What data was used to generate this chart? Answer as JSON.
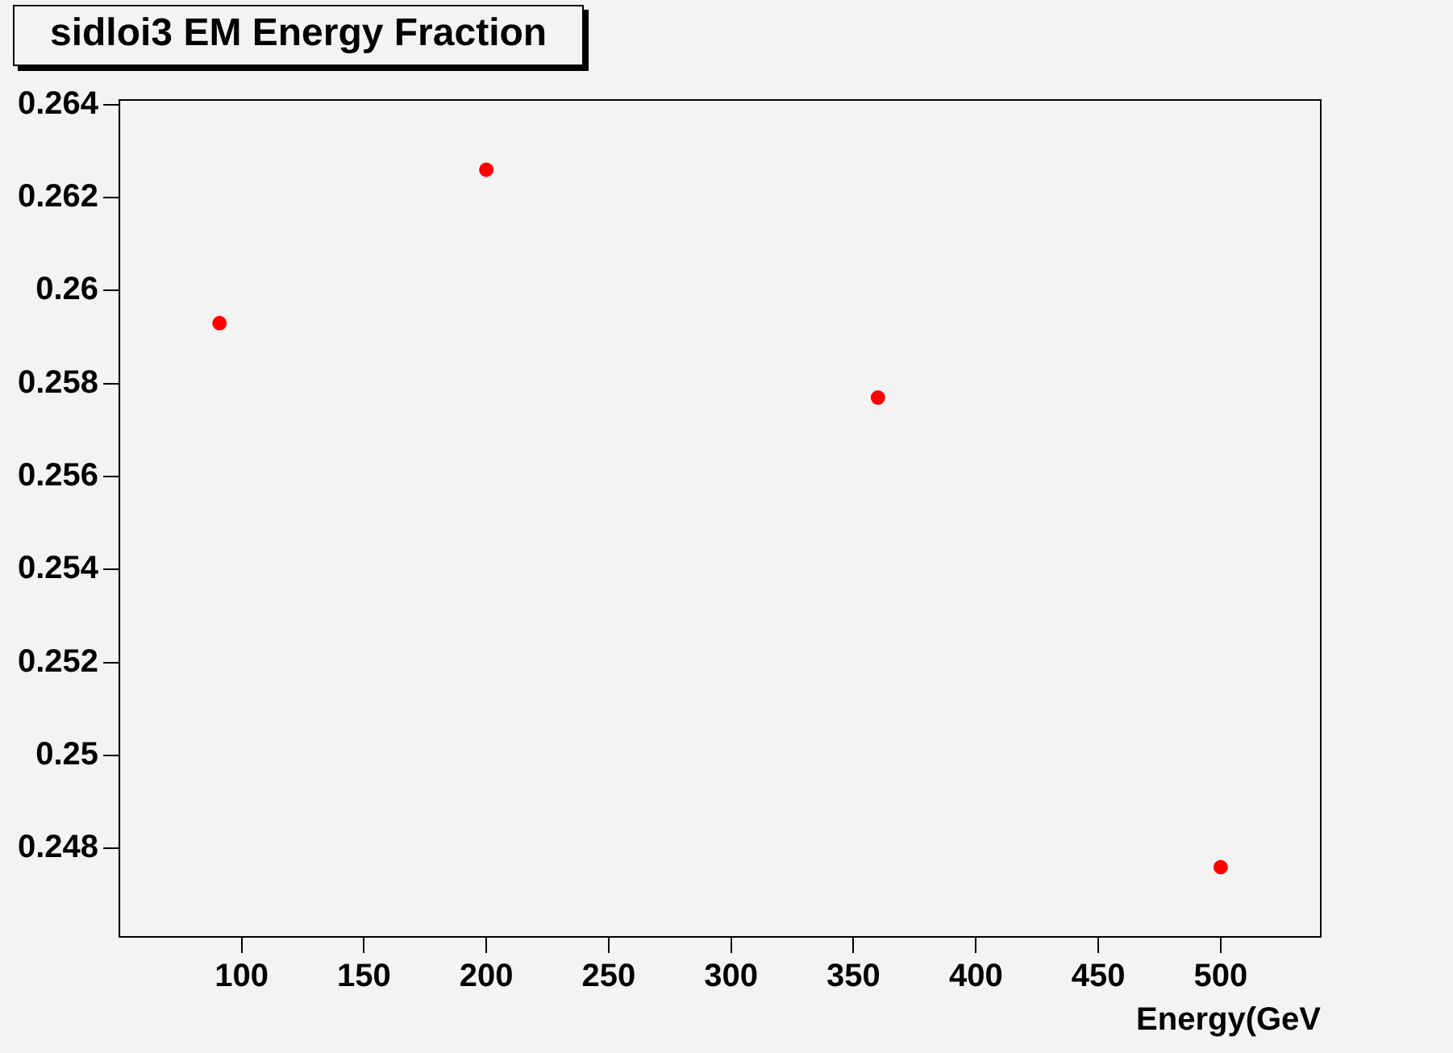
{
  "chart_data": {
    "type": "scatter",
    "title": "sidloi3 EM Energy Fraction",
    "xlabel": "Energy(GeV",
    "x": [
      91,
      200,
      360,
      500
    ],
    "series": [
      {
        "color": "#ff0000",
        "values": [
          0.2593,
          0.2626,
          0.2577,
          0.2476
        ]
      }
    ],
    "xlim": [
      50.1,
      540.9
    ],
    "xticks": [
      100,
      150,
      200,
      250,
      300,
      350,
      400,
      450,
      500
    ],
    "ylim": [
      0.2461,
      0.2641
    ],
    "yticks": [
      0.248,
      0.25,
      0.252,
      0.254,
      0.256,
      0.258,
      0.26,
      0.262,
      0.264
    ],
    "grid": false,
    "legend": false,
    "marker": "circle"
  }
}
